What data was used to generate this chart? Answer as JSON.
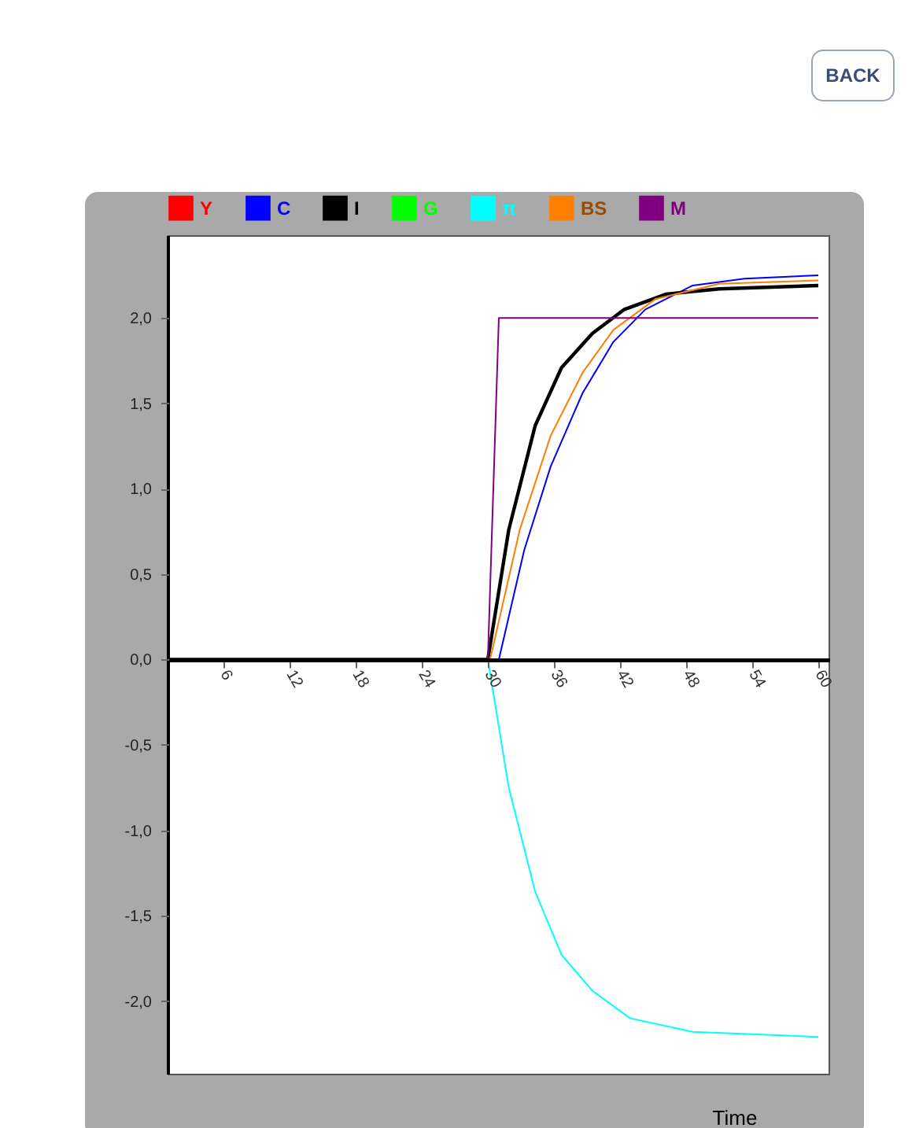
{
  "chart_data": {
    "type": "line",
    "xlabel": "Time",
    "annotations": [
      "BACK"
    ],
    "xlim": [
      1,
      61
    ],
    "xticks": [
      6,
      12,
      18,
      24,
      30,
      36,
      42,
      48,
      54,
      60
    ],
    "ylim": [
      -2.43,
      2.48
    ],
    "yticks": [
      {
        "value": -2,
        "label": "-2,0"
      },
      {
        "value": -1.5,
        "label": "-1,5"
      },
      {
        "value": -1,
        "label": "-1,0"
      },
      {
        "value": -0.5,
        "label": "-0,5"
      },
      {
        "value": 0,
        "label": "0,0"
      },
      {
        "value": 0.5,
        "label": "0,5"
      },
      {
        "value": 1,
        "label": "1,0"
      },
      {
        "value": 1.5,
        "label": "1,5"
      },
      {
        "value": 2,
        "label": "2,0"
      }
    ],
    "grid": false,
    "legend": "top",
    "marker": "none",
    "line_style": "solid",
    "series": [
      {
        "name": "Y",
        "color": "#ff0000"
      },
      {
        "name": "C",
        "color": "#0000ff",
        "x": [
          1,
          31,
          33.3,
          35.7,
          38.6,
          41.4,
          44.3,
          48.6,
          53.3,
          60
        ],
        "values": [
          0,
          0,
          0.64,
          1.13,
          1.56,
          1.86,
          2.05,
          2.19,
          2.23,
          2.25
        ]
      },
      {
        "name": "I",
        "color": "#000000",
        "x": [
          1,
          30,
          31.9,
          34.3,
          36.7,
          39.5,
          42.4,
          46.2,
          51,
          60
        ],
        "values": [
          0,
          0,
          0.76,
          1.37,
          1.71,
          1.91,
          2.05,
          2.14,
          2.17,
          2.19
        ]
      },
      {
        "name": "G",
        "color": "#00ff00"
      },
      {
        "name": "π",
        "color": "#00ffff",
        "x": [
          1,
          30,
          31.9,
          34.3,
          36.7,
          39.5,
          42.9,
          48.6,
          60
        ],
        "values": [
          0,
          0,
          -0.75,
          -1.36,
          -1.73,
          -1.94,
          -2.1,
          -2.18,
          -2.21
        ]
      },
      {
        "name": "BS",
        "color": "#ff7f00",
        "x": [
          1,
          30.2,
          32.9,
          35.7,
          38.6,
          41.4,
          45.2,
          51,
          60
        ],
        "values": [
          0,
          0,
          0.76,
          1.31,
          1.68,
          1.93,
          2.11,
          2.2,
          2.22
        ]
      },
      {
        "name": "M",
        "color": "#800080",
        "x": [
          1,
          30,
          31,
          60
        ],
        "values": [
          0,
          0,
          2,
          2
        ]
      }
    ]
  }
}
